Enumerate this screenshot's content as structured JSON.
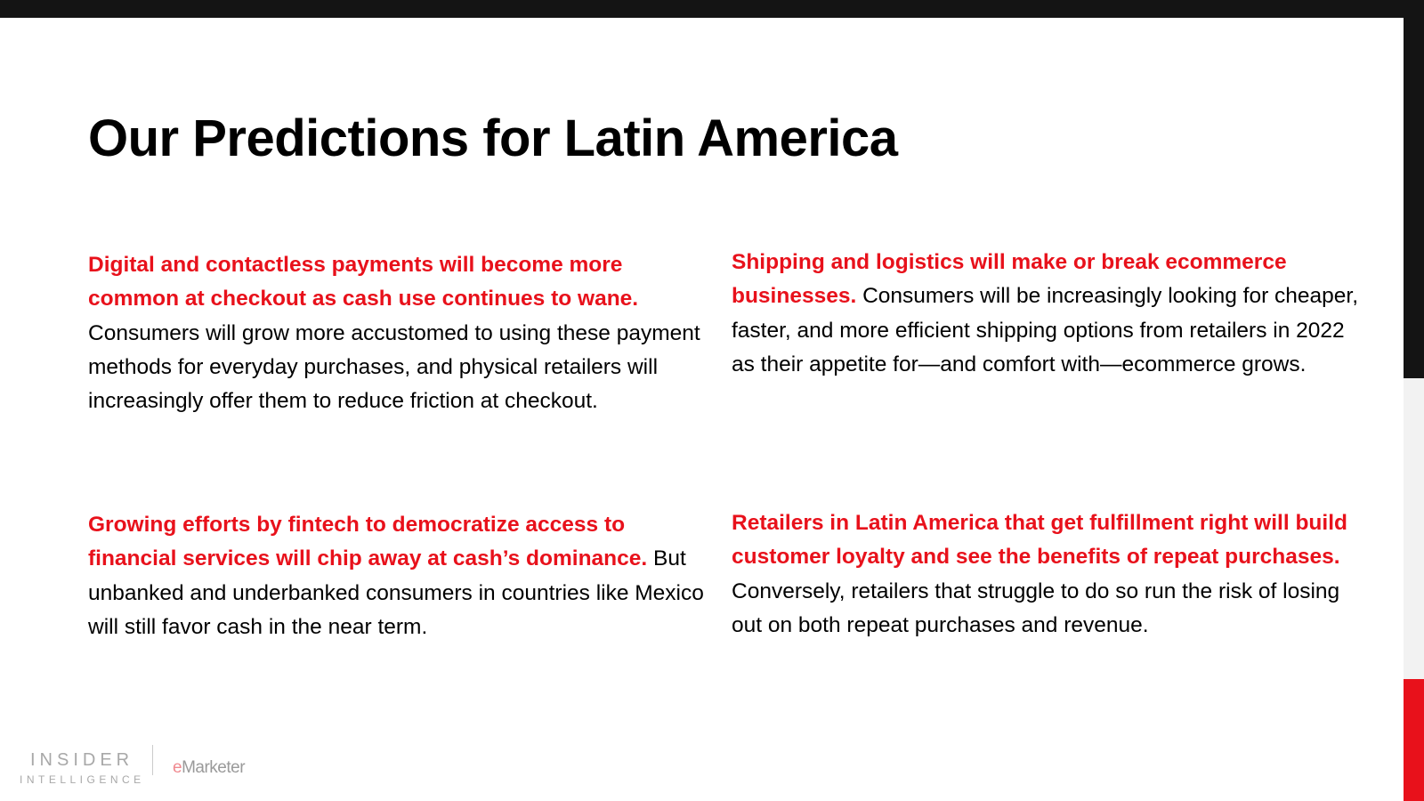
{
  "slide": {
    "title": "Our Predictions for Latin America",
    "predictions": [
      {
        "lead": "Digital and contactless payments will become more common at checkout as cash use continues to wane.",
        "body": "Consumers will grow more accustomed to using these payment methods for everyday purchases, and physical retailers will increasingly offer them to reduce friction at checkout."
      },
      {
        "lead": "Shipping and logistics will make or break ecommerce businesses.",
        "body": "Consumers will be increasingly looking for cheaper, faster, and more efficient shipping options from retailers in 2022 as their appetite for—and comfort with—ecommerce grows."
      },
      {
        "lead": "Growing efforts by fintech to democratize access to financial services will chip away at cash’s dominance.",
        "body": "But unbanked and underbanked consumers in countries like Mexico will still favor cash in the near term."
      },
      {
        "lead": "Retailers in Latin America that get fulfillment right will build customer loyalty and see the benefits of repeat purchases.",
        "body": "Conversely, retailers that struggle to do so run the risk of losing out on both repeat purchases and revenue."
      }
    ]
  },
  "footer": {
    "logo_line1": "INSIDER",
    "logo_line2": "INTELLIGENCE",
    "emarketer_e": "e",
    "emarketer_rest": "Marketer"
  },
  "colors": {
    "accent": "#e8111b",
    "dark": "#141414",
    "text": "#000000"
  }
}
